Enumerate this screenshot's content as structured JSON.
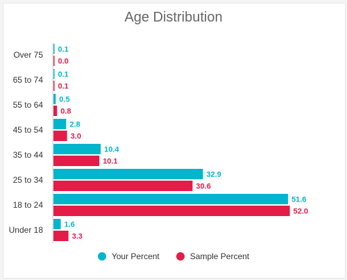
{
  "chart_data": {
    "type": "bar",
    "orientation": "horizontal",
    "title": "Age Distribution",
    "categories": [
      "Over 75",
      "65 to 74",
      "55 to 64",
      "45 to 54",
      "35 to 44",
      "25 to 34",
      "18 to 24",
      "Under 18"
    ],
    "series": [
      {
        "name": "Your Percent",
        "color": "#00b5cc",
        "values": [
          0.1,
          0.1,
          0.5,
          2.8,
          10.4,
          32.9,
          51.6,
          1.6
        ]
      },
      {
        "name": "Sample Percent",
        "color": "#e31c48",
        "values": [
          0.0,
          0.1,
          0.8,
          3.0,
          10.1,
          30.6,
          52.0,
          3.3
        ]
      }
    ],
    "xlim": [
      0,
      60
    ],
    "value_decimals": 1,
    "legend_position": "bottom"
  }
}
